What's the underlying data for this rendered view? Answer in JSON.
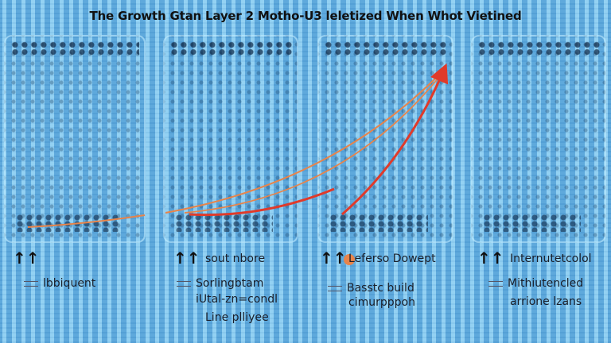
{
  "title": "The Growth Gtan Layer 2 Motho-U3 leletized When Whot Vietined",
  "colors": {
    "curve_light": "#e8844a",
    "curve_strong": "#e03a2a",
    "background": "#7cc3ec"
  },
  "panels": [
    {
      "icon": "up-arrows-icon",
      "heading": "",
      "lines": [
        "lbbiquent"
      ]
    },
    {
      "icon": "up-arrows-icon",
      "heading": "sout nbore",
      "lines": [
        "Sorlingbtam",
        "iUtal-zn=condl",
        "Line plliyee"
      ]
    },
    {
      "icon": "up-arrows-icon",
      "heading": "Leferso Dowept",
      "lines": [
        "Basstc build",
        "cimurpppoh"
      ]
    },
    {
      "icon": "up-arrows-icon",
      "heading": "Internutetcolol",
      "lines": [
        "Mithiutencled",
        "arrione lzans"
      ]
    }
  ],
  "arrow_glyph": "↑↑"
}
